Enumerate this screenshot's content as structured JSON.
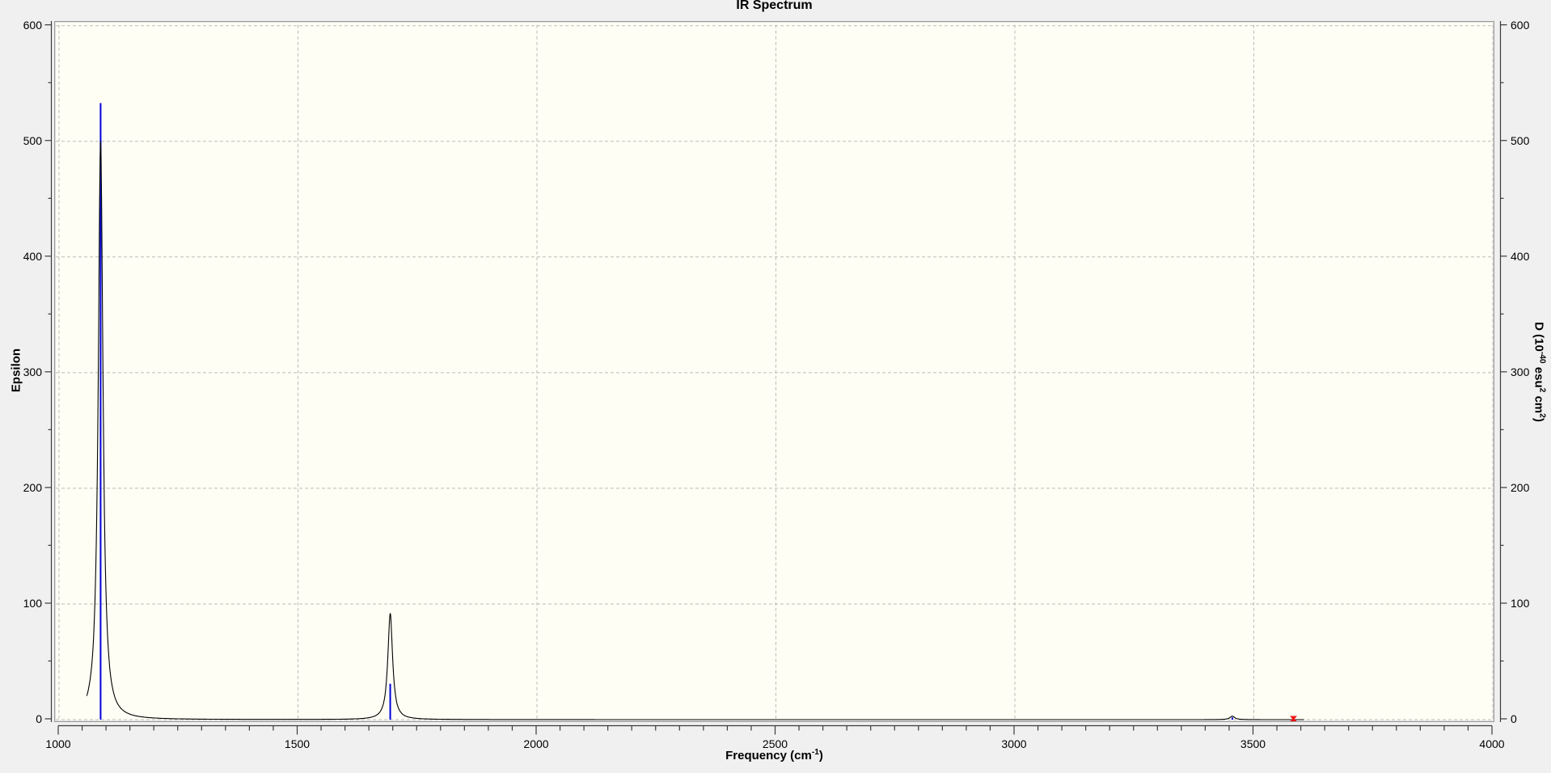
{
  "title": "IR Spectrum",
  "colors": {
    "window_bg": "#f0f0f0",
    "plot_bg": "#fefef4",
    "grid": "#bcbcbc",
    "axis": "#3a3a3a",
    "curve": "#000000",
    "stick": "#0000dd",
    "marker": "#ee1111"
  },
  "axes": {
    "x": {
      "label_parts": [
        {
          "text": "Frequency (cm"
        },
        {
          "text": "-1",
          "sup": true
        },
        {
          "text": ")"
        }
      ],
      "min": 1000,
      "max": 4000,
      "major_ticks": [
        1000,
        1500,
        2000,
        2500,
        3000,
        3500,
        4000
      ],
      "minor_step": 50
    },
    "y_left": {
      "label": "Epsilon",
      "min": 0,
      "max": 600,
      "major_ticks": [
        0,
        100,
        200,
        300,
        400,
        500,
        600
      ],
      "minor_step": 50
    },
    "y_right": {
      "label_parts": [
        {
          "text": "D (10"
        },
        {
          "text": "-40",
          "sup": true
        },
        {
          "text": " esu"
        },
        {
          "text": "2",
          "sup": true
        },
        {
          "text": " cm"
        },
        {
          "text": "2",
          "sup": true
        },
        {
          "text": ")"
        }
      ],
      "min": 0,
      "max": 600,
      "major_ticks": [
        0,
        100,
        200,
        300,
        400,
        500,
        600
      ],
      "minor_step": 50
    }
  },
  "chart_data": {
    "type": "line",
    "title": "IR Spectrum",
    "xlabel": "Frequency (cm^-1)",
    "ylabel_left": "Epsilon",
    "ylabel_right": "D (10^-40 esu^2 cm^2)",
    "xlim": [
      1000,
      4000
    ],
    "ylim": [
      0,
      600
    ],
    "grid": true,
    "curve": {
      "name": "epsilon-spectrum",
      "profile": "lorentzian_sum",
      "hwhm": 6,
      "domain": [
        1058,
        3605
      ],
      "peaks": [
        {
          "freq": 1087,
          "epsilon": 500
        },
        {
          "freq": 1693,
          "epsilon": 92
        },
        {
          "freq": 3455,
          "epsilon": 3
        }
      ]
    },
    "sticks": {
      "name": "dipole-strength-sticks",
      "items": [
        {
          "freq": 1087,
          "value": 533
        },
        {
          "freq": 1693,
          "value": 31
        },
        {
          "freq": 3455,
          "value": 2
        }
      ]
    },
    "marker": {
      "name": "frequency-cursor",
      "freq": 3583,
      "value": 0
    }
  }
}
